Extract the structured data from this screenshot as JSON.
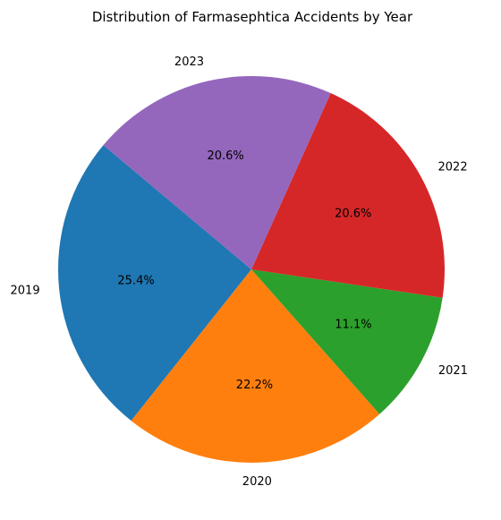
{
  "chart_data": {
    "type": "pie",
    "title": "Distribution of Farmasephtica Accidents by Year",
    "start_angle_deg": 140,
    "direction": "counterclockwise",
    "slices": [
      {
        "label": "2019",
        "percent": 25.4,
        "percent_label": "25.4%",
        "color": "#1f77b4"
      },
      {
        "label": "2020",
        "percent": 22.2,
        "percent_label": "22.2%",
        "color": "#ff7f0e"
      },
      {
        "label": "2021",
        "percent": 11.1,
        "percent_label": "11.1%",
        "color": "#2ca02c"
      },
      {
        "label": "2022",
        "percent": 20.6,
        "percent_label": "20.6%",
        "color": "#d62728"
      },
      {
        "label": "2023",
        "percent": 20.6,
        "percent_label": "20.6%",
        "color": "#9467bd"
      }
    ]
  }
}
